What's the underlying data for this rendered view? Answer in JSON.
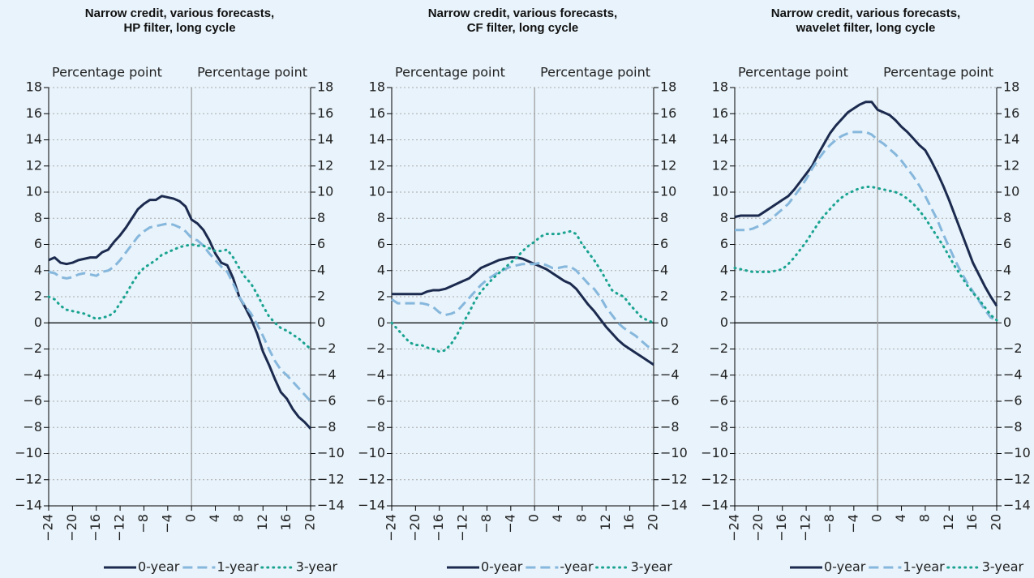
{
  "chart_data": [
    {
      "type": "line",
      "title": "Narrow credit, various forecasts,\nHP filter, long cycle",
      "ylabel": "Percentage point",
      "y2label": "Percentage point",
      "x": [
        -24,
        -23,
        -22,
        -21,
        -20,
        -19,
        -18,
        -17,
        -16,
        -15,
        -14,
        -13,
        -12,
        -11,
        -10,
        -9,
        -8,
        -7,
        -6,
        -5,
        -4,
        -3,
        -2,
        -1,
        0,
        1,
        2,
        3,
        4,
        5,
        6,
        7,
        8,
        9,
        10,
        11,
        12,
        13,
        14,
        15,
        16,
        17,
        18,
        19,
        20
      ],
      "xlim": [
        -24,
        20
      ],
      "xticks": [
        {
          "value": -24,
          "label": "−24"
        },
        {
          "value": -20,
          "label": "−20"
        },
        {
          "value": -16,
          "label": "−16"
        },
        {
          "value": -12,
          "label": "−12"
        },
        {
          "value": -8,
          "label": "−8"
        },
        {
          "value": -4,
          "label": "−4"
        },
        0,
        4,
        8,
        12,
        16,
        20
      ],
      "ylim": [
        -14,
        18
      ],
      "yticks": [
        {
          "value": -14,
          "label": "−14"
        },
        {
          "value": -12,
          "label": "−12"
        },
        {
          "value": -10,
          "label": "−10"
        },
        {
          "value": -8,
          "label": "−8"
        },
        {
          "value": -6,
          "label": "−6"
        },
        {
          "value": -4,
          "label": "−4"
        },
        {
          "value": -2,
          "label": "−2"
        },
        0,
        2,
        4,
        6,
        8,
        10,
        12,
        14,
        16,
        18
      ],
      "y2lim": [
        -14,
        18
      ],
      "y2ticks": [
        {
          "value": -14,
          "label": "−14"
        },
        {
          "value": -12,
          "label": "−12"
        },
        {
          "value": -10,
          "label": "−10"
        },
        {
          "value": -8,
          "label": "−8"
        },
        {
          "value": -6,
          "label": "−6"
        },
        {
          "value": -4,
          "label": "−4"
        },
        {
          "value": -2,
          "label": "−2"
        },
        0,
        2,
        4,
        6,
        8,
        10,
        12,
        14,
        16,
        18
      ],
      "grid": true,
      "legend": "bottom",
      "series": [
        {
          "name": "0-year",
          "color": "#1b2a4e",
          "style": "solid",
          "values": [
            4.8,
            5.0,
            4.6,
            4.5,
            4.6,
            4.8,
            4.9,
            5.0,
            5.0,
            5.4,
            5.6,
            6.2,
            6.7,
            7.3,
            8.0,
            8.7,
            9.1,
            9.4,
            9.4,
            9.7,
            9.6,
            9.5,
            9.3,
            8.9,
            7.9,
            7.6,
            7.1,
            6.3,
            5.3,
            4.6,
            4.4,
            3.4,
            2.0,
            1.2,
            0.3,
            -0.8,
            -2.2,
            -3.2,
            -4.3,
            -5.3,
            -5.8,
            -6.6,
            -7.2,
            -7.6,
            -8.1
          ]
        },
        {
          "name": "1-year",
          "color": "#86b7dc",
          "style": "dashed",
          "values": [
            3.9,
            3.8,
            3.5,
            3.4,
            3.5,
            3.7,
            3.8,
            3.7,
            3.6,
            3.9,
            4.0,
            4.3,
            4.8,
            5.4,
            6.0,
            6.6,
            7.0,
            7.3,
            7.4,
            7.5,
            7.6,
            7.5,
            7.3,
            7.0,
            6.5,
            6.3,
            5.9,
            5.3,
            4.8,
            4.3,
            3.9,
            3.0,
            2.0,
            1.3,
            0.7,
            -0.1,
            -1.0,
            -2.0,
            -2.9,
            -3.6,
            -4.0,
            -4.5,
            -5.0,
            -5.5,
            -6.0
          ]
        },
        {
          "name": "3-year",
          "color": "#1aa391",
          "style": "dotted",
          "values": [
            2.0,
            1.8,
            1.3,
            1.0,
            0.9,
            0.8,
            0.7,
            0.5,
            0.3,
            0.4,
            0.5,
            0.8,
            1.5,
            2.2,
            3.0,
            3.7,
            4.2,
            4.5,
            4.8,
            5.2,
            5.4,
            5.6,
            5.8,
            5.9,
            6.0,
            5.9,
            5.9,
            5.7,
            5.5,
            5.5,
            5.6,
            5.0,
            4.2,
            3.5,
            3.0,
            2.2,
            1.3,
            0.5,
            0.0,
            -0.4,
            -0.6,
            -0.9,
            -1.2,
            -1.6,
            -2.0
          ]
        }
      ]
    },
    {
      "type": "line",
      "title": "Narrow credit, various forecasts,\nCF filter, long cycle",
      "ylabel": "Percentage point",
      "y2label": "Percentage point",
      "x": [
        -24,
        -23,
        -22,
        -21,
        -20,
        -19,
        -18,
        -17,
        -16,
        -15,
        -14,
        -13,
        -12,
        -11,
        -10,
        -9,
        -8,
        -7,
        -6,
        -5,
        -4,
        -3,
        -2,
        -1,
        0,
        1,
        2,
        3,
        4,
        5,
        6,
        7,
        8,
        9,
        10,
        11,
        12,
        13,
        14,
        15,
        16,
        17,
        18,
        19,
        20
      ],
      "xlim": [
        -24,
        20
      ],
      "xticks": [
        {
          "value": -24,
          "label": "−24"
        },
        {
          "value": -20,
          "label": "−20"
        },
        {
          "value": -16,
          "label": "−16"
        },
        {
          "value": -12,
          "label": "−12"
        },
        {
          "value": -8,
          "label": "−8"
        },
        {
          "value": -4,
          "label": "−4"
        },
        0,
        4,
        8,
        12,
        16,
        20
      ],
      "ylim": [
        -14,
        18
      ],
      "yticks": [
        {
          "value": -14,
          "label": "−14"
        },
        {
          "value": -12,
          "label": "−12"
        },
        {
          "value": -10,
          "label": "−10"
        },
        {
          "value": -8,
          "label": "−8"
        },
        {
          "value": -6,
          "label": "−6"
        },
        {
          "value": -4,
          "label": "−4"
        },
        {
          "value": -2,
          "label": "−2"
        },
        0,
        2,
        4,
        6,
        8,
        10,
        12,
        14,
        16,
        18
      ],
      "y2lim": [
        -14,
        18
      ],
      "y2ticks": [
        {
          "value": -14,
          "label": "−14"
        },
        {
          "value": -12,
          "label": "−12"
        },
        {
          "value": -10,
          "label": "−10"
        },
        {
          "value": -8,
          "label": "−8"
        },
        {
          "value": -6,
          "label": "−6"
        },
        {
          "value": -4,
          "label": "−4"
        },
        {
          "value": -2,
          "label": "−2"
        },
        0,
        2,
        4,
        6,
        8,
        10,
        12,
        14,
        16,
        18
      ],
      "grid": true,
      "legend": "bottom",
      "series": [
        {
          "name": "0-year",
          "color": "#1b2a4e",
          "style": "solid",
          "values": [
            2.2,
            2.2,
            2.2,
            2.2,
            2.2,
            2.2,
            2.4,
            2.5,
            2.5,
            2.6,
            2.8,
            3.0,
            3.2,
            3.4,
            3.8,
            4.2,
            4.4,
            4.6,
            4.8,
            4.9,
            5.0,
            5.0,
            4.9,
            4.7,
            4.5,
            4.3,
            4.1,
            3.8,
            3.5,
            3.2,
            3.0,
            2.6,
            2.0,
            1.4,
            0.9,
            0.3,
            -0.3,
            -0.8,
            -1.3,
            -1.7,
            -2.0,
            -2.3,
            -2.6,
            -2.9,
            -3.2
          ]
        },
        {
          "name": "-year",
          "color": "#86b7dc",
          "style": "dashed",
          "values": [
            1.8,
            1.5,
            1.5,
            1.5,
            1.5,
            1.5,
            1.4,
            1.2,
            0.8,
            0.6,
            0.7,
            0.9,
            1.4,
            1.9,
            2.4,
            2.9,
            3.3,
            3.6,
            3.9,
            4.1,
            4.3,
            4.4,
            4.5,
            4.5,
            4.5,
            4.6,
            4.4,
            4.2,
            4.2,
            4.3,
            4.3,
            4.0,
            3.5,
            3.0,
            2.6,
            2.0,
            1.2,
            0.6,
            0.0,
            -0.4,
            -0.7,
            -1.0,
            -1.4,
            -1.8,
            -2.0
          ]
        },
        {
          "name": "3-year",
          "color": "#1aa391",
          "style": "dotted",
          "values": [
            0.0,
            -0.5,
            -1.0,
            -1.5,
            -1.7,
            -1.7,
            -1.9,
            -2.0,
            -2.2,
            -2.1,
            -1.6,
            -0.9,
            0.0,
            0.8,
            1.7,
            2.4,
            2.9,
            3.4,
            3.8,
            4.2,
            4.6,
            5.0,
            5.5,
            5.9,
            6.2,
            6.6,
            6.8,
            6.8,
            6.8,
            6.9,
            7.0,
            6.8,
            6.0,
            5.4,
            4.8,
            4.1,
            3.3,
            2.5,
            2.2,
            2.0,
            1.4,
            0.9,
            0.4,
            0.2,
            0.0
          ]
        }
      ]
    },
    {
      "type": "line",
      "title": "Narrow credit, various forecasts,\nwavelet filter, long cycle",
      "ylabel": "Percentage point",
      "y2label": "Percentage point",
      "x": [
        -24,
        -23,
        -22,
        -21,
        -20,
        -19,
        -18,
        -17,
        -16,
        -15,
        -14,
        -13,
        -12,
        -11,
        -10,
        -9,
        -8,
        -7,
        -6,
        -5,
        -4,
        -3,
        -2,
        -1,
        0,
        1,
        2,
        3,
        4,
        5,
        6,
        7,
        8,
        9,
        10,
        11,
        12,
        13,
        14,
        15,
        16,
        17,
        18,
        19,
        20
      ],
      "xlim": [
        -24,
        20
      ],
      "xticks": [
        {
          "value": -24,
          "label": "−24"
        },
        {
          "value": -20,
          "label": "−20"
        },
        {
          "value": -16,
          "label": "−16"
        },
        {
          "value": -12,
          "label": "−12"
        },
        {
          "value": -8,
          "label": "−8"
        },
        {
          "value": -4,
          "label": "−4"
        },
        0,
        4,
        8,
        12,
        16,
        20
      ],
      "ylim": [
        -14,
        18
      ],
      "yticks": [
        {
          "value": -14,
          "label": "−14"
        },
        {
          "value": -12,
          "label": "−12"
        },
        {
          "value": -10,
          "label": "−10"
        },
        {
          "value": -8,
          "label": "−8"
        },
        {
          "value": -6,
          "label": "−6"
        },
        {
          "value": -4,
          "label": "−4"
        },
        {
          "value": -2,
          "label": "−2"
        },
        0,
        2,
        4,
        6,
        8,
        10,
        12,
        14,
        16,
        18
      ],
      "y2lim": [
        -14,
        18
      ],
      "y2ticks": [
        {
          "value": -14,
          "label": "−14"
        },
        {
          "value": -12,
          "label": "−12"
        },
        {
          "value": -10,
          "label": "−10"
        },
        {
          "value": -8,
          "label": "−8"
        },
        {
          "value": -6,
          "label": "−6"
        },
        {
          "value": -4,
          "label": "−4"
        },
        {
          "value": -2,
          "label": "−2"
        },
        0,
        2,
        4,
        6,
        8,
        10,
        12,
        14,
        16,
        18
      ],
      "grid": true,
      "legend": "bottom",
      "series": [
        {
          "name": "0-year",
          "color": "#1b2a4e",
          "style": "solid",
          "values": [
            8.1,
            8.2,
            8.2,
            8.2,
            8.2,
            8.5,
            8.8,
            9.1,
            9.4,
            9.7,
            10.2,
            10.8,
            11.4,
            12.0,
            12.9,
            13.7,
            14.5,
            15.1,
            15.6,
            16.1,
            16.4,
            16.7,
            16.9,
            16.9,
            16.3,
            16.1,
            15.9,
            15.5,
            15.0,
            14.6,
            14.1,
            13.6,
            13.2,
            12.4,
            11.5,
            10.5,
            9.4,
            8.2,
            7.0,
            5.8,
            4.6,
            3.7,
            2.8,
            2.0,
            1.3
          ]
        },
        {
          "name": "1-year",
          "color": "#86b7dc",
          "style": "dashed",
          "values": [
            7.1,
            7.1,
            7.1,
            7.2,
            7.4,
            7.6,
            7.9,
            8.3,
            8.7,
            9.1,
            9.7,
            10.3,
            11.0,
            11.8,
            12.5,
            13.1,
            13.6,
            14.0,
            14.3,
            14.5,
            14.6,
            14.6,
            14.6,
            14.4,
            14.0,
            13.7,
            13.3,
            12.9,
            12.4,
            11.8,
            11.2,
            10.5,
            9.7,
            8.8,
            7.9,
            6.8,
            5.8,
            4.8,
            3.9,
            3.1,
            2.4,
            1.7,
            1.0,
            0.4,
            0.2
          ]
        },
        {
          "name": "3-year",
          "color": "#1aa391",
          "style": "dotted",
          "values": [
            4.2,
            4.1,
            4.0,
            3.9,
            3.9,
            3.9,
            3.9,
            4.0,
            4.1,
            4.5,
            5.0,
            5.6,
            6.2,
            6.9,
            7.6,
            8.2,
            8.7,
            9.2,
            9.6,
            9.9,
            10.1,
            10.3,
            10.4,
            10.4,
            10.3,
            10.2,
            10.1,
            10.0,
            9.8,
            9.5,
            9.1,
            8.6,
            8.0,
            7.3,
            6.6,
            5.9,
            5.1,
            4.3,
            3.6,
            2.9,
            2.3,
            1.8,
            1.2,
            0.6,
            0.2
          ]
        }
      ]
    }
  ]
}
